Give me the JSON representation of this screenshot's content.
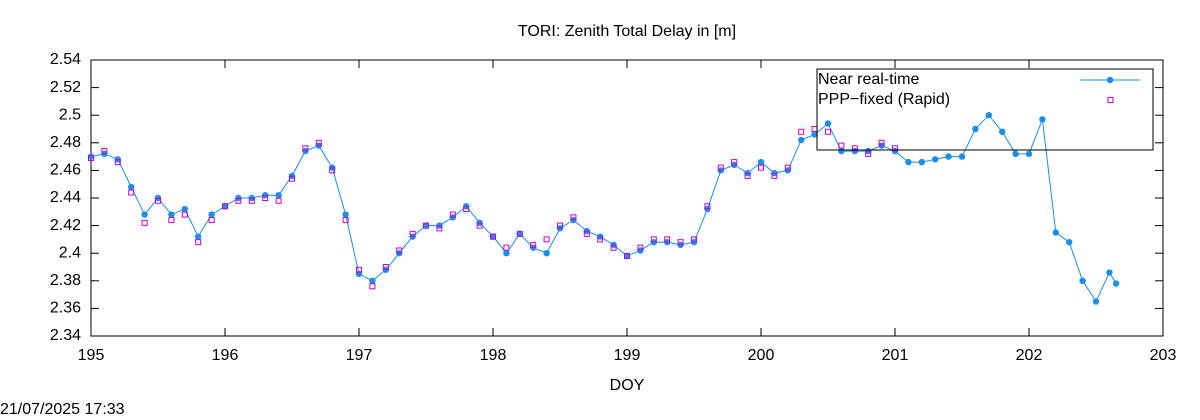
{
  "chart_data": {
    "type": "line",
    "title": "TORI: Zenith Total Delay in [m]",
    "x_label": "DOY",
    "timestamp": "21/07/2025 17:33",
    "xlim": [
      195,
      203
    ],
    "xticks": [
      195,
      196,
      197,
      198,
      199,
      200,
      201,
      202,
      203
    ],
    "ylim": [
      2.34,
      2.54
    ],
    "yticks": [
      2.34,
      2.36,
      2.38,
      2.4,
      2.42,
      2.44,
      2.46,
      2.48,
      2.5,
      2.52,
      2.54
    ],
    "grid": false,
    "legend": "top right",
    "series": [
      {
        "name": "Near real-time",
        "color": "#1a8fe8",
        "marker": "circle",
        "x": [
          195.0,
          195.1,
          195.2,
          195.3,
          195.4,
          195.5,
          195.6,
          195.7,
          195.8,
          195.9,
          196.0,
          196.1,
          196.2,
          196.3,
          196.4,
          196.5,
          196.6,
          196.7,
          196.8,
          196.9,
          197.0,
          197.1,
          197.2,
          197.3,
          197.4,
          197.5,
          197.6,
          197.7,
          197.8,
          197.9,
          198.0,
          198.1,
          198.2,
          198.3,
          198.4,
          198.5,
          198.6,
          198.7,
          198.8,
          198.9,
          199.0,
          199.1,
          199.2,
          199.3,
          199.4,
          199.5,
          199.6,
          199.7,
          199.8,
          199.9,
          200.0,
          200.1,
          200.2,
          200.3,
          200.4,
          200.5,
          200.6,
          200.7,
          200.8,
          200.9,
          201.0,
          201.1,
          201.2,
          201.3,
          201.4,
          201.5,
          201.6,
          201.7,
          201.8,
          201.9,
          202.0,
          202.1,
          202.2,
          202.3,
          202.4,
          202.5,
          202.6,
          202.65
        ],
        "values": [
          2.47,
          2.472,
          2.468,
          2.448,
          2.428,
          2.44,
          2.428,
          2.432,
          2.412,
          2.428,
          2.434,
          2.44,
          2.44,
          2.442,
          2.442,
          2.456,
          2.474,
          2.478,
          2.462,
          2.428,
          2.385,
          2.38,
          2.388,
          2.4,
          2.412,
          2.42,
          2.42,
          2.426,
          2.434,
          2.422,
          2.412,
          2.4,
          2.414,
          2.404,
          2.4,
          2.418,
          2.424,
          2.416,
          2.412,
          2.406,
          2.398,
          2.402,
          2.408,
          2.408,
          2.406,
          2.408,
          2.432,
          2.46,
          2.464,
          2.458,
          2.466,
          2.458,
          2.46,
          2.482,
          2.486,
          2.494,
          2.474,
          2.474,
          2.474,
          2.478,
          2.474,
          2.466,
          2.466,
          2.468,
          2.47,
          2.47,
          2.49,
          2.5,
          2.488,
          2.472,
          2.472,
          2.497,
          2.415,
          2.408,
          2.38,
          2.365,
          2.386,
          2.378
        ]
      },
      {
        "name": "PPP−fixed (Rapid)",
        "color": "#cc00cc",
        "marker": "square",
        "x": [
          195.0,
          195.1,
          195.2,
          195.3,
          195.4,
          195.5,
          195.6,
          195.7,
          195.8,
          195.9,
          196.0,
          196.1,
          196.2,
          196.3,
          196.4,
          196.5,
          196.6,
          196.7,
          196.8,
          196.9,
          197.0,
          197.1,
          197.2,
          197.3,
          197.4,
          197.5,
          197.6,
          197.7,
          197.8,
          197.9,
          198.0,
          198.1,
          198.2,
          198.3,
          198.4,
          198.5,
          198.6,
          198.7,
          198.8,
          198.9,
          199.0,
          199.1,
          199.2,
          199.3,
          199.4,
          199.5,
          199.6,
          199.7,
          199.8,
          199.9,
          200.0,
          200.1,
          200.2,
          200.3,
          200.4,
          200.5,
          200.6,
          200.7,
          200.8,
          200.9,
          201.0
        ],
        "values": [
          2.469,
          2.474,
          2.466,
          2.444,
          2.422,
          2.438,
          2.424,
          2.428,
          2.408,
          2.424,
          2.434,
          2.438,
          2.438,
          2.44,
          2.438,
          2.454,
          2.476,
          2.48,
          2.46,
          2.424,
          2.388,
          2.376,
          2.39,
          2.402,
          2.414,
          2.42,
          2.418,
          2.428,
          2.432,
          2.42,
          2.412,
          2.404,
          2.414,
          2.406,
          2.41,
          2.42,
          2.426,
          2.414,
          2.41,
          2.404,
          2.398,
          2.404,
          2.41,
          2.41,
          2.408,
          2.41,
          2.434,
          2.462,
          2.466,
          2.456,
          2.462,
          2.456,
          2.462,
          2.488,
          2.49,
          2.488,
          2.478,
          2.476,
          2.472,
          2.48,
          2.476
        ]
      }
    ]
  }
}
